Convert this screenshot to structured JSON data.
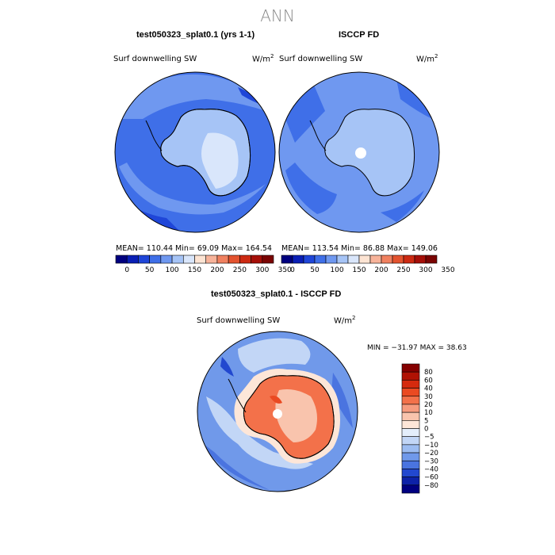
{
  "page": {
    "title": "ANN"
  },
  "panels": {
    "top_left": {
      "title": "test050323_splat0.1 (yrs 1-1)",
      "field": "Surf downwelling SW",
      "units_base": "W/m",
      "units_exp": "2",
      "stats": "MEAN= 110.44   Min=  69.09   Max= 164.54"
    },
    "top_right": {
      "title": "ISCCP FD",
      "field": "Surf downwelling SW",
      "units_base": "W/m",
      "units_exp": "2",
      "stats": "MEAN= 113.54   Min=  86.88   Max= 149.06"
    },
    "bottom": {
      "title": "test050323_splat0.1 - ISCCP FD",
      "field": "Surf downwelling SW",
      "units_base": "W/m",
      "units_exp": "2",
      "minmax": "MIN = −31.97 MAX =   38.63"
    }
  },
  "colorbar_top": {
    "labels": [
      "0",
      "50",
      "100",
      "150",
      "200",
      "250",
      "300",
      "350"
    ],
    "colors": [
      "#00007f",
      "#0a1fb5",
      "#1f46d8",
      "#3f6fe8",
      "#6f98f0",
      "#a6c4f6",
      "#d9e6fb",
      "#fde4d3",
      "#f7b39a",
      "#f08160",
      "#e3532f",
      "#cc2a12",
      "#a50f08",
      "#7a0403"
    ]
  },
  "colorbar_bottom": {
    "labels": [
      "80",
      "60",
      "40",
      "30",
      "20",
      "10",
      "5",
      "0",
      "−5",
      "−10",
      "−20",
      "−30",
      "−40",
      "−60",
      "−80"
    ],
    "colors": [
      "#850000",
      "#b01204",
      "#d52a0e",
      "#ea4a22",
      "#f3714a",
      "#f69b7e",
      "#f9c4ad",
      "#fde6d8",
      "#e4eefb",
      "#c2d6f6",
      "#9cbcf1",
      "#7099ea",
      "#4a74e0",
      "#2248cf",
      "#0d22a8",
      "#000080"
    ]
  }
}
